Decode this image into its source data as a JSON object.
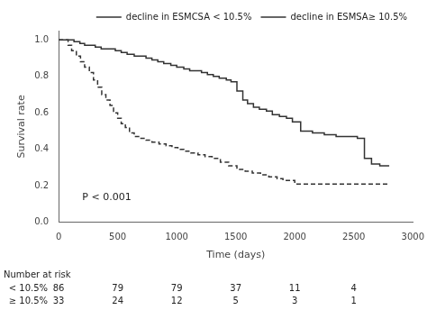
{
  "chart_data": {
    "type": "step",
    "xlabel": "Time (days)",
    "ylabel": "Survival rate",
    "xlim": [
      0,
      3000
    ],
    "ylim": [
      0.0,
      1.05
    ],
    "xticks": [
      0,
      500,
      1000,
      1500,
      2000,
      2500,
      3000
    ],
    "yticks": [
      {
        "value": 0.0,
        "label": "0.0"
      },
      0.2,
      0.4,
      0.6,
      0.8,
      {
        "value": 1.0,
        "label": "1.0"
      }
    ],
    "grid": false,
    "legend": "upper right",
    "series": [
      {
        "name": "decline in ESMCSA < 10.5%",
        "color": "#333333",
        "line_style": "solid",
        "x": [
          0,
          80,
          130,
          180,
          220,
          270,
          310,
          360,
          420,
          480,
          530,
          580,
          640,
          690,
          740,
          790,
          840,
          890,
          950,
          1000,
          1060,
          1110,
          1160,
          1210,
          1260,
          1310,
          1360,
          1420,
          1460,
          1510,
          1560,
          1600,
          1650,
          1700,
          1760,
          1810,
          1870,
          1930,
          1980,
          2050,
          2150,
          2250,
          2350,
          2450,
          2500,
          2530,
          2590,
          2650,
          2720,
          2800
        ],
        "values": [
          1.0,
          1.0,
          0.99,
          0.98,
          0.97,
          0.97,
          0.96,
          0.95,
          0.95,
          0.94,
          0.93,
          0.92,
          0.91,
          0.91,
          0.9,
          0.89,
          0.88,
          0.87,
          0.86,
          0.85,
          0.84,
          0.83,
          0.83,
          0.82,
          0.81,
          0.8,
          0.79,
          0.78,
          0.77,
          0.72,
          0.67,
          0.65,
          0.63,
          0.62,
          0.61,
          0.59,
          0.58,
          0.57,
          0.55,
          0.5,
          0.49,
          0.48,
          0.47,
          0.47,
          0.47,
          0.46,
          0.35,
          0.32,
          0.31,
          0.31
        ]
      },
      {
        "name": "decline in ESMSA≥ 10.5%",
        "color": "#333333",
        "line_style": "dashed",
        "x": [
          0,
          40,
          80,
          110,
          150,
          185,
          220,
          260,
          295,
          330,
          365,
          400,
          435,
          465,
          500,
          530,
          565,
          600,
          640,
          690,
          740,
          790,
          850,
          910,
          960,
          1010,
          1060,
          1120,
          1180,
          1240,
          1300,
          1370,
          1440,
          1510,
          1580,
          1640,
          1710,
          1780,
          1850,
          1900,
          2000,
          2100,
          2200,
          2400,
          2600,
          2800
        ],
        "values": [
          1.0,
          1.0,
          0.97,
          0.94,
          0.91,
          0.88,
          0.85,
          0.82,
          0.78,
          0.74,
          0.7,
          0.67,
          0.64,
          0.6,
          0.57,
          0.54,
          0.52,
          0.49,
          0.47,
          0.46,
          0.45,
          0.44,
          0.43,
          0.42,
          0.41,
          0.4,
          0.39,
          0.38,
          0.37,
          0.36,
          0.35,
          0.33,
          0.31,
          0.29,
          0.28,
          0.27,
          0.26,
          0.25,
          0.24,
          0.23,
          0.21,
          0.21,
          0.21,
          0.21,
          0.21,
          0.21
        ]
      }
    ],
    "annotations": [
      {
        "text": "P < 0.001",
        "x": 200,
        "y": 0.12
      }
    ],
    "risk_table": {
      "title": "Number at risk",
      "x": [
        0,
        500,
        1000,
        1500,
        2000,
        2500
      ],
      "rows": [
        {
          "label": "< 10.5%",
          "values": [
            86,
            79,
            79,
            37,
            11,
            4
          ]
        },
        {
          "label": "≥ 10.5%",
          "values": [
            33,
            24,
            12,
            5,
            3,
            1
          ]
        }
      ]
    }
  }
}
